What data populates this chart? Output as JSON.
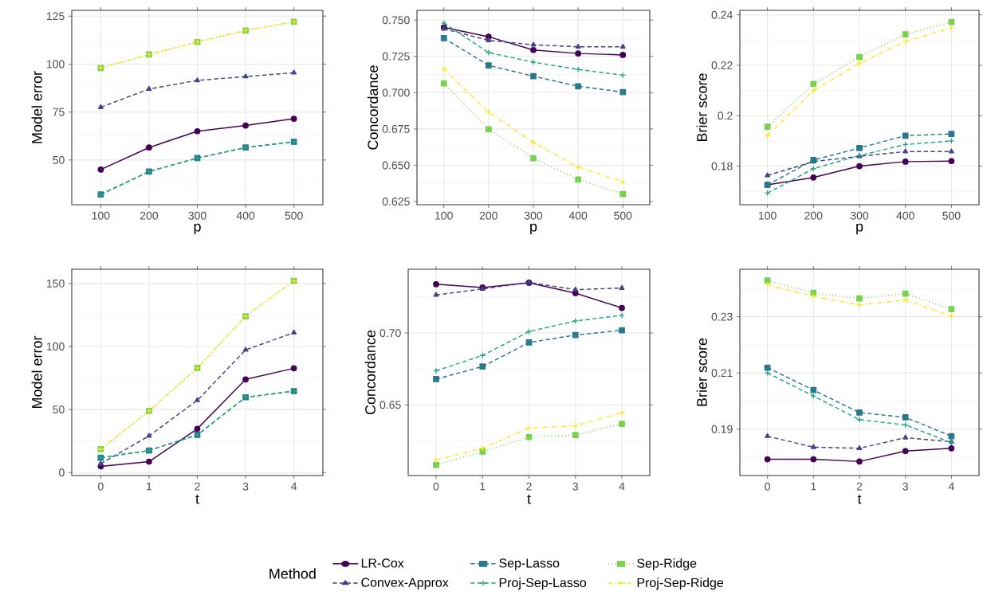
{
  "chart_data": [
    {
      "type": "line",
      "xlabel": "p",
      "ylabel": "Model error",
      "grid": true,
      "categories": [
        "100",
        "200",
        "300",
        "400",
        "500"
      ],
      "ylim": [
        26.7,
        128
      ],
      "yticks": [
        50,
        75,
        100,
        125
      ],
      "series": [
        {
          "color": "#440154",
          "marker": "circle",
          "line_style": "solid",
          "values": [
            45,
            56.5,
            65,
            68,
            71.5
          ]
        },
        {
          "color": "#414487",
          "marker": "triangle",
          "line_style": "dashed",
          "values": [
            77.5,
            87,
            91.5,
            93.5,
            95.5
          ]
        },
        {
          "color": "#2A788E",
          "marker": "square",
          "line_style": "dashed",
          "values": [
            32,
            44,
            51,
            56.5,
            59.5
          ]
        },
        {
          "color": "#22A884",
          "marker": "cross",
          "line_style": "dashed",
          "values": [
            32,
            44,
            51,
            56.5,
            59.5
          ]
        },
        {
          "color": "#7AD151",
          "marker": "square",
          "line_style": "dotted",
          "values": [
            98,
            105,
            111.5,
            117.5,
            122
          ]
        },
        {
          "color": "#FDE725",
          "marker": "cross",
          "line_style": "dashdot",
          "values": [
            98,
            105,
            111.5,
            117.5,
            122
          ]
        }
      ]
    },
    {
      "type": "line",
      "xlabel": "p",
      "ylabel": "Concordance",
      "grid": true,
      "categories": [
        "100",
        "200",
        "300",
        "400",
        "500"
      ],
      "ylim": [
        0.6228,
        0.7567
      ],
      "yticks": [
        {
          "value": 0.625,
          "label": "0.625"
        },
        {
          "value": 0.65,
          "label": "0.650"
        },
        {
          "value": 0.675,
          "label": "0.675"
        },
        {
          "value": 0.7,
          "label": "0.700"
        },
        {
          "value": 0.725,
          "label": "0.725"
        },
        {
          "value": 0.75,
          "label": "0.750"
        }
      ],
      "series": [
        {
          "color": "#440154",
          "marker": "circle",
          "line_style": "solid",
          "values": [
            0.745,
            0.7385,
            0.7294,
            0.727,
            0.726
          ]
        },
        {
          "color": "#414487",
          "marker": "triangle",
          "line_style": "dashed",
          "values": [
            0.744,
            0.736,
            0.733,
            0.7316,
            0.7316
          ]
        },
        {
          "color": "#2A788E",
          "marker": "square",
          "line_style": "dashed",
          "values": [
            0.7376,
            0.7188,
            0.7113,
            0.7044,
            0.7004
          ]
        },
        {
          "color": "#22A884",
          "marker": "cross",
          "line_style": "dashed",
          "values": [
            0.748,
            0.7276,
            0.721,
            0.716,
            0.712
          ]
        },
        {
          "color": "#7AD151",
          "marker": "square",
          "line_style": "dotted",
          "values": [
            0.7064,
            0.6748,
            0.6549,
            0.6401,
            0.6301
          ]
        },
        {
          "color": "#FDE725",
          "marker": "cross",
          "line_style": "dashdot",
          "values": [
            0.7164,
            0.6865,
            0.6657,
            0.6487,
            0.6387
          ]
        }
      ]
    },
    {
      "type": "line",
      "xlabel": "p",
      "ylabel": "Brier score",
      "grid": true,
      "categories": [
        "100",
        "200",
        "300",
        "400",
        "500"
      ],
      "ylim": [
        0.1647,
        0.2418
      ],
      "yticks": [
        0.18,
        0.2,
        0.22,
        0.24
      ],
      "series": [
        {
          "color": "#440154",
          "marker": "circle",
          "line_style": "solid",
          "values": [
            0.1726,
            0.1755,
            0.18,
            0.1818,
            0.182
          ]
        },
        {
          "color": "#414487",
          "marker": "triangle",
          "line_style": "dashed",
          "values": [
            0.1763,
            0.1818,
            0.1839,
            0.1858,
            0.1858
          ]
        },
        {
          "color": "#2A788E",
          "marker": "square",
          "line_style": "dashed",
          "values": [
            0.1726,
            0.1824,
            0.1872,
            0.1921,
            0.1928
          ]
        },
        {
          "color": "#22A884",
          "marker": "cross",
          "line_style": "dashed",
          "values": [
            0.1693,
            0.179,
            0.1842,
            0.1886,
            0.19
          ]
        },
        {
          "color": "#7AD151",
          "marker": "square",
          "line_style": "dotted",
          "values": [
            0.1956,
            0.2126,
            0.2233,
            0.2323,
            0.2372
          ]
        },
        {
          "color": "#FDE725",
          "marker": "cross",
          "line_style": "dashdot",
          "values": [
            0.1921,
            0.21,
            0.2208,
            0.2295,
            0.2349
          ]
        }
      ]
    },
    {
      "type": "line",
      "xlabel": "t",
      "ylabel": "Model error",
      "grid": true,
      "categories": [
        "0",
        "1",
        "2",
        "3",
        "4"
      ],
      "ylim": [
        -2.4,
        161.3
      ],
      "yticks": [
        0,
        50,
        100,
        150
      ],
      "series": [
        {
          "color": "#440154",
          "marker": "circle",
          "line_style": "solid",
          "values": [
            4.9,
            8.6,
            34.7,
            73.9,
            82.7
          ]
        },
        {
          "color": "#414487",
          "marker": "triangle",
          "line_style": "dashed",
          "values": [
            7,
            29,
            57.3,
            97.3,
            111
          ]
        },
        {
          "color": "#2A788E",
          "marker": "square",
          "line_style": "dashed",
          "values": [
            11.7,
            17.5,
            29.9,
            59.7,
            64.6
          ]
        },
        {
          "color": "#22A884",
          "marker": "cross",
          "line_style": "dashed",
          "values": [
            11.7,
            17.5,
            29.9,
            59.7,
            64.6
          ]
        },
        {
          "color": "#7AD151",
          "marker": "square",
          "line_style": "dotted",
          "values": [
            18.6,
            48.9,
            83,
            124,
            152
          ]
        },
        {
          "color": "#FDE725",
          "marker": "cross",
          "line_style": "dashdot",
          "values": [
            18.6,
            48.9,
            83,
            124,
            152
          ]
        }
      ]
    },
    {
      "type": "line",
      "xlabel": "t",
      "ylabel": "Concordance",
      "grid": true,
      "legend": "bottom",
      "legend_title": "Method",
      "categories": [
        "0",
        "1",
        "2",
        "3",
        "4"
      ],
      "ylim": [
        0.6008,
        0.7444
      ],
      "yticks": [
        {
          "value": 0.65,
          "label": "0.65"
        },
        {
          "value": 0.7,
          "label": "0.70"
        }
      ],
      "series": [
        {
          "name": "LR-Cox",
          "color": "#440154",
          "marker": "circle",
          "line_style": "solid",
          "values": [
            0.734,
            0.7317,
            0.735,
            0.7278,
            0.7175
          ]
        },
        {
          "name": "Convex-Approx",
          "color": "#414487",
          "marker": "triangle",
          "line_style": "dashed",
          "values": [
            0.7265,
            0.7307,
            0.7352,
            0.7302,
            0.7313
          ]
        },
        {
          "name": "Sep-Lasso",
          "color": "#2A788E",
          "marker": "square",
          "line_style": "dashed",
          "values": [
            0.6679,
            0.6767,
            0.6934,
            0.6986,
            0.7019
          ]
        },
        {
          "name": "Proj-Sep-Lasso",
          "color": "#22A884",
          "marker": "cross",
          "line_style": "dashed",
          "values": [
            0.6737,
            0.6844,
            0.701,
            0.7084,
            0.7123
          ]
        },
        {
          "name": "Sep-Ridge",
          "color": "#7AD151",
          "marker": "square",
          "line_style": "dotted",
          "values": [
            0.6082,
            0.6175,
            0.6276,
            0.629,
            0.6368
          ]
        },
        {
          "name": "Proj-Sep-Ridge",
          "color": "#FDE725",
          "marker": "cross",
          "line_style": "dashdot",
          "values": [
            0.6117,
            0.6198,
            0.6339,
            0.6354,
            0.6446
          ]
        }
      ]
    },
    {
      "type": "line",
      "xlabel": "t",
      "ylabel": "Brier score",
      "grid": true,
      "categories": [
        "0",
        "1",
        "2",
        "3",
        "4"
      ],
      "ylim": [
        0.1735,
        0.2469
      ],
      "yticks": [
        0.19,
        0.21,
        0.23
      ],
      "series": [
        {
          "color": "#440154",
          "marker": "circle",
          "line_style": "solid",
          "values": [
            0.1793,
            0.1793,
            0.1785,
            0.1822,
            0.1832
          ]
        },
        {
          "color": "#414487",
          "marker": "triangle",
          "line_style": "dashed",
          "values": [
            0.1875,
            0.1836,
            0.1832,
            0.187,
            0.1855
          ]
        },
        {
          "color": "#2A788E",
          "marker": "square",
          "line_style": "dashed",
          "values": [
            0.2119,
            0.2039,
            0.1959,
            0.1942,
            0.1875
          ]
        },
        {
          "color": "#22A884",
          "marker": "cross",
          "line_style": "dashed",
          "values": [
            0.21,
            0.2018,
            0.1934,
            0.1915,
            0.1852
          ]
        },
        {
          "color": "#7AD151",
          "marker": "square",
          "line_style": "dotted",
          "values": [
            0.2429,
            0.2385,
            0.2365,
            0.2382,
            0.2327
          ]
        },
        {
          "color": "#FDE725",
          "marker": "cross",
          "line_style": "dashdot",
          "values": [
            0.2414,
            0.2373,
            0.2342,
            0.236,
            0.2302
          ]
        }
      ]
    }
  ]
}
